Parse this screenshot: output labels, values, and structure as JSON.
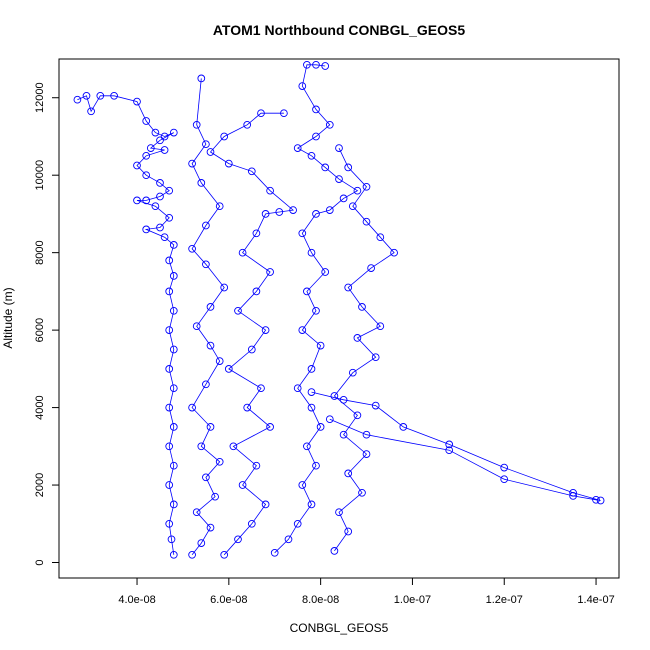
{
  "chart_data": {
    "type": "line",
    "title": "ATOM1 Northbound CONBGL_GEOS5",
    "xlabel": "CONBGL_GEOS5",
    "ylabel": "Altitude (m)",
    "xlim": [
      2.3e-08,
      1.45e-07
    ],
    "ylim": [
      -400,
      13000
    ],
    "xticks": [
      4e-08,
      6e-08,
      8e-08,
      1e-07,
      1.2e-07,
      1.4e-07
    ],
    "xtick_labels": [
      "4.0e-08",
      "6.0e-08",
      "8.0e-08",
      "1.0e-07",
      "1.2e-07",
      "1.4e-07"
    ],
    "yticks": [
      0,
      2000,
      4000,
      6000,
      8000,
      10000,
      12000
    ],
    "ytick_labels": [
      "0",
      "2000",
      "4000",
      "6000",
      "8000",
      "10000",
      "12000"
    ],
    "marker": "open-circle",
    "line_color": "#0000ff",
    "grid": false,
    "series": [
      {
        "profile": "near 4.8e-08 (descent)",
        "points": [
          [
            2.7e-08,
            11950
          ],
          [
            2.9e-08,
            12050
          ],
          [
            3e-08,
            11650
          ],
          [
            3.2e-08,
            12050
          ],
          [
            3.5e-08,
            12050
          ],
          [
            4e-08,
            11900
          ],
          [
            4.2e-08,
            11400
          ],
          [
            4.4e-08,
            11100
          ],
          [
            4.6e-08,
            11000
          ],
          [
            4.8e-08,
            11100
          ],
          [
            4.5e-08,
            10900
          ],
          [
            4.3e-08,
            10700
          ],
          [
            4.6e-08,
            10650
          ],
          [
            4.2e-08,
            10500
          ],
          [
            4e-08,
            10250
          ],
          [
            4.2e-08,
            10000
          ],
          [
            4.5e-08,
            9800
          ],
          [
            4.7e-08,
            9600
          ],
          [
            4.5e-08,
            9450
          ],
          [
            4.2e-08,
            9350
          ],
          [
            4e-08,
            9350
          ],
          [
            4.4e-08,
            9200
          ],
          [
            4.7e-08,
            8900
          ],
          [
            4.5e-08,
            8650
          ],
          [
            4.2e-08,
            8600
          ],
          [
            4.6e-08,
            8400
          ],
          [
            4.8e-08,
            8200
          ],
          [
            4.7e-08,
            7800
          ],
          [
            4.8e-08,
            7400
          ],
          [
            4.7e-08,
            7000
          ],
          [
            4.8e-08,
            6500
          ],
          [
            4.7e-08,
            6000
          ],
          [
            4.8e-08,
            5500
          ],
          [
            4.7e-08,
            5000
          ],
          [
            4.8e-08,
            4500
          ],
          [
            4.7e-08,
            4000
          ],
          [
            4.8e-08,
            3500
          ],
          [
            4.7e-08,
            3000
          ],
          [
            4.8e-08,
            2500
          ],
          [
            4.7e-08,
            2000
          ],
          [
            4.8e-08,
            1500
          ],
          [
            4.7e-08,
            1000
          ],
          [
            4.75e-08,
            600
          ],
          [
            4.8e-08,
            200
          ]
        ]
      },
      {
        "profile": "near 7.5e-08 (ascent)",
        "points": [
          [
            7e-08,
            250
          ],
          [
            7.3e-08,
            600
          ],
          [
            7.5e-08,
            1000
          ],
          [
            7.8e-08,
            1500
          ],
          [
            7.6e-08,
            2000
          ],
          [
            7.9e-08,
            2500
          ],
          [
            7.7e-08,
            3000
          ],
          [
            8e-08,
            3500
          ],
          [
            7.8e-08,
            4000
          ],
          [
            7.5e-08,
            4500
          ],
          [
            7.8e-08,
            5000
          ],
          [
            8e-08,
            5600
          ],
          [
            7.6e-08,
            6000
          ],
          [
            7.9e-08,
            6500
          ],
          [
            7.7e-08,
            7000
          ],
          [
            8.1e-08,
            7500
          ],
          [
            7.8e-08,
            8000
          ],
          [
            7.6e-08,
            8500
          ],
          [
            7.9e-08,
            9000
          ],
          [
            8.2e-08,
            9100
          ],
          [
            8.5e-08,
            9400
          ],
          [
            8.8e-08,
            9600
          ],
          [
            8.4e-08,
            9900
          ],
          [
            8.1e-08,
            10200
          ],
          [
            7.8e-08,
            10500
          ],
          [
            7.5e-08,
            10700
          ],
          [
            7.9e-08,
            11000
          ],
          [
            8.2e-08,
            11300
          ],
          [
            7.9e-08,
            11700
          ],
          [
            7.6e-08,
            12300
          ],
          [
            7.7e-08,
            12850
          ],
          [
            7.9e-08,
            12850
          ],
          [
            8.1e-08,
            12820
          ]
        ]
      },
      {
        "profile": "near 6.5e-08 to 7.0e-08 (mixed)",
        "points": [
          [
            5.9e-08,
            200
          ],
          [
            6.2e-08,
            600
          ],
          [
            6.5e-08,
            1000
          ],
          [
            6.8e-08,
            1500
          ],
          [
            6.3e-08,
            2000
          ],
          [
            6.6e-08,
            2500
          ],
          [
            6.1e-08,
            3000
          ],
          [
            6.9e-08,
            3500
          ],
          [
            6.4e-08,
            4000
          ],
          [
            6.7e-08,
            4500
          ],
          [
            6e-08,
            5000
          ],
          [
            6.5e-08,
            5500
          ],
          [
            6.8e-08,
            6000
          ],
          [
            6.2e-08,
            6500
          ],
          [
            6.6e-08,
            7000
          ],
          [
            6.9e-08,
            7500
          ],
          [
            6.3e-08,
            8000
          ],
          [
            6.6e-08,
            8500
          ],
          [
            6.8e-08,
            9000
          ],
          [
            7.1e-08,
            9050
          ],
          [
            7.4e-08,
            9100
          ],
          [
            6.9e-08,
            9600
          ],
          [
            6.5e-08,
            10100
          ],
          [
            6e-08,
            10300
          ],
          [
            5.6e-08,
            10600
          ],
          [
            5.9e-08,
            11000
          ],
          [
            6.4e-08,
            11300
          ],
          [
            6.7e-08,
            11600
          ],
          [
            7.2e-08,
            11600
          ]
        ]
      },
      {
        "profile": "outlier branch near 1.4e-07",
        "points": [
          [
            7.8e-08,
            4400
          ],
          [
            8.5e-08,
            4200
          ],
          [
            9.2e-08,
            4050
          ],
          [
            9.8e-08,
            3500
          ],
          [
            1.08e-07,
            3050
          ],
          [
            1.2e-07,
            2450
          ],
          [
            1.35e-07,
            1800
          ],
          [
            1.41e-07,
            1600
          ],
          [
            1.4e-07,
            1620
          ],
          [
            1.35e-07,
            1720
          ],
          [
            1.2e-07,
            2150
          ],
          [
            1.08e-07,
            2900
          ],
          [
            9e-08,
            3300
          ],
          [
            8.2e-08,
            3700
          ]
        ]
      },
      {
        "profile": "near 5.5e-08 (low-level)",
        "points": [
          [
            5.2e-08,
            200
          ],
          [
            5.4e-08,
            500
          ],
          [
            5.6e-08,
            900
          ],
          [
            5.3e-08,
            1300
          ],
          [
            5.7e-08,
            1700
          ],
          [
            5.5e-08,
            2200
          ],
          [
            5.8e-08,
            2600
          ],
          [
            5.4e-08,
            3000
          ],
          [
            5.6e-08,
            3500
          ],
          [
            5.2e-08,
            4000
          ],
          [
            5.5e-08,
            4600
          ],
          [
            5.8e-08,
            5200
          ],
          [
            5.6e-08,
            5600
          ],
          [
            5.3e-08,
            6100
          ],
          [
            5.6e-08,
            6600
          ],
          [
            5.9e-08,
            7100
          ],
          [
            5.5e-08,
            7700
          ],
          [
            5.2e-08,
            8100
          ],
          [
            5.5e-08,
            8700
          ],
          [
            5.8e-08,
            9200
          ],
          [
            5.4e-08,
            9800
          ],
          [
            5.2e-08,
            10300
          ],
          [
            5.5e-08,
            10800
          ],
          [
            5.3e-08,
            11300
          ],
          [
            5.4e-08,
            12500
          ]
        ]
      },
      {
        "profile": "near 8.5e-08 (scatter)",
        "points": [
          [
            8.3e-08,
            300
          ],
          [
            8.6e-08,
            800
          ],
          [
            8.4e-08,
            1300
          ],
          [
            8.9e-08,
            1800
          ],
          [
            8.6e-08,
            2300
          ],
          [
            9e-08,
            2800
          ],
          [
            8.5e-08,
            3300
          ],
          [
            8.8e-08,
            3800
          ],
          [
            8.3e-08,
            4300
          ],
          [
            8.7e-08,
            4900
          ],
          [
            9.2e-08,
            5300
          ],
          [
            8.8e-08,
            5800
          ],
          [
            9.3e-08,
            6100
          ],
          [
            8.9e-08,
            6600
          ],
          [
            8.6e-08,
            7100
          ],
          [
            9.1e-08,
            7600
          ],
          [
            9.6e-08,
            8000
          ],
          [
            9.3e-08,
            8400
          ],
          [
            9e-08,
            8800
          ],
          [
            8.7e-08,
            9200
          ],
          [
            9e-08,
            9700
          ],
          [
            8.6e-08,
            10200
          ],
          [
            8.4e-08,
            10700
          ]
        ]
      }
    ]
  }
}
